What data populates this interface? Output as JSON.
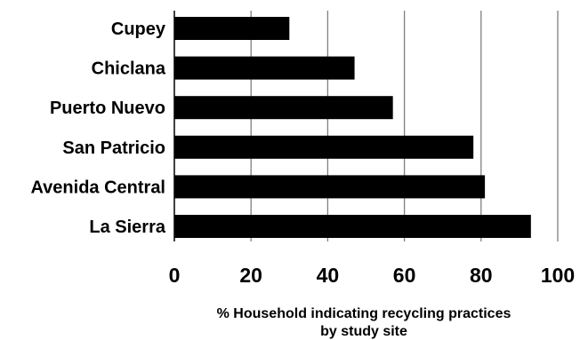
{
  "chart_data": {
    "type": "bar",
    "orientation": "horizontal",
    "categories": [
      "Cupey",
      "Chiclana",
      "Puerto Nuevo",
      "San Patricio",
      "Avenida Central",
      "La Sierra"
    ],
    "values": [
      30,
      47,
      57,
      78,
      81,
      93
    ],
    "xlim": [
      0,
      100
    ],
    "xticks": [
      "0",
      "20",
      "40",
      "60",
      "80",
      "100"
    ],
    "xlabel_line1": "% Household indicating recycling practices",
    "xlabel_line2": "by study site",
    "grid": "vertical",
    "colors": {
      "bar": "#000000",
      "grid": "#808080"
    }
  }
}
